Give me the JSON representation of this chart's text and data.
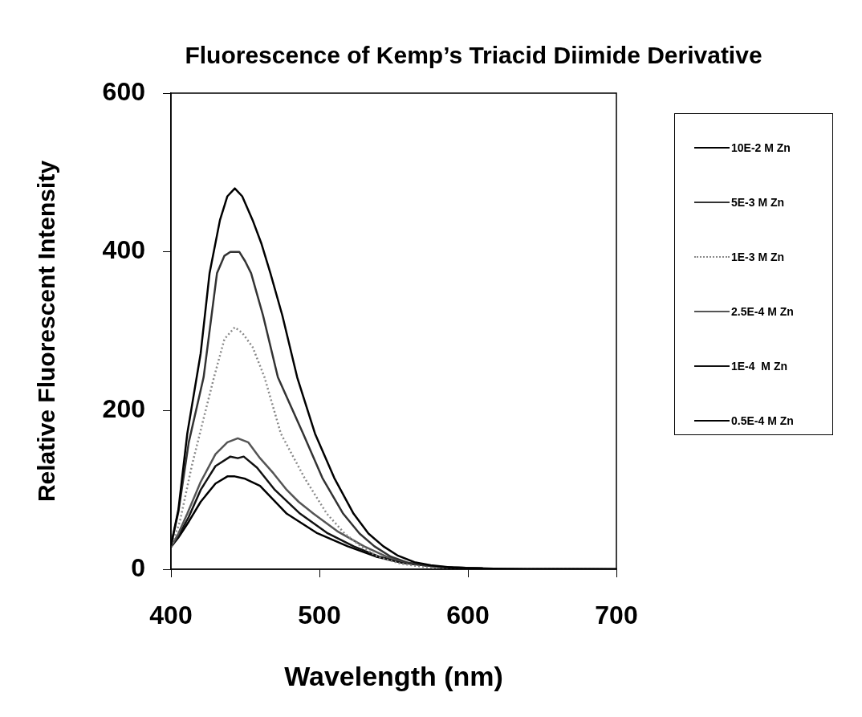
{
  "chart_data": {
    "type": "line",
    "title": "Fluorescence of Kemp’s Triacid Diimide Derivative",
    "xlabel": "Wavelength (nm)",
    "ylabel": "Relative Fluorescent Intensity",
    "xlim": [
      400,
      700
    ],
    "xticks": [
      400,
      500,
      600,
      700
    ],
    "ylim": [
      0,
      600
    ],
    "yticks": [
      0,
      200,
      400,
      600
    ],
    "grid": false,
    "legend": "right",
    "marker": "none",
    "series": [
      {
        "name": "10E-2 M Zn",
        "color": "#000000",
        "x": [
          400,
          405,
          411,
          420,
          426,
          433,
          438,
          443,
          448,
          455,
          461,
          467,
          475,
          485,
          497,
          510,
          523,
          533,
          543,
          553,
          564,
          575,
          590,
          610,
          640,
          700
        ],
        "values": [
          30,
          75,
          171,
          272,
          373,
          440,
          470,
          480,
          470,
          440,
          410,
          373,
          320,
          242,
          171,
          115,
          70,
          45,
          29,
          17,
          9,
          5,
          2,
          1,
          0,
          0
        ]
      },
      {
        "name": "5E-3 M Zn",
        "color": "#333333",
        "x": [
          400,
          405,
          412,
          422,
          431,
          436,
          440,
          446,
          450,
          454,
          462,
          472,
          489,
          502,
          516,
          527,
          537,
          548,
          560,
          575,
          590,
          610,
          640,
          700
        ],
        "values": [
          30,
          72,
          160,
          242,
          373,
          395,
          400,
          400,
          388,
          373,
          320,
          242,
          171,
          115,
          70,
          45,
          29,
          16,
          8,
          4,
          2,
          1,
          0,
          0
        ]
      },
      {
        "name": "1E-3 M Zn",
        "color": "#8a8a8a",
        "line_style": "dotted",
        "x": [
          400,
          406,
          414,
          422,
          429,
          436,
          443,
          448,
          455,
          463,
          474,
          490,
          505,
          517,
          528,
          540,
          555,
          570,
          590,
          620,
          700
        ],
        "values": [
          28,
          60,
          130,
          190,
          242,
          290,
          305,
          298,
          280,
          242,
          171,
          115,
          70,
          45,
          29,
          15,
          7,
          3,
          1,
          0,
          0
        ]
      },
      {
        "name": "2.5E-4 M Zn",
        "color": "#555555",
        "x": [
          400,
          405,
          411,
          420,
          430,
          438,
          445,
          452,
          460,
          469,
          478,
          486,
          496,
          512,
          530,
          545,
          560,
          580,
          610,
          700
        ],
        "values": [
          28,
          45,
          70,
          110,
          145,
          160,
          165,
          160,
          140,
          121,
          100,
          85,
          70,
          48,
          29,
          16,
          8,
          3,
          1,
          0
        ]
      },
      {
        "name": "1E-4  M Zn",
        "color": "#111111",
        "x": [
          400,
          405,
          412,
          420,
          430,
          440,
          445,
          449,
          458,
          470,
          487,
          505,
          523,
          540,
          558,
          580,
          610,
          700
        ],
        "values": [
          28,
          42,
          66,
          100,
          130,
          142,
          140,
          142,
          128,
          100,
          70,
          46,
          29,
          16,
          8,
          3,
          1,
          0
        ]
      },
      {
        "name": "0.5E-4 M Zn",
        "color": "#000000",
        "x": [
          400,
          405,
          412,
          420,
          430,
          438,
          443,
          450,
          460,
          478,
          498,
          519,
          538,
          556,
          580,
          610,
          700
        ],
        "values": [
          28,
          40,
          60,
          85,
          108,
          117,
          117,
          114,
          105,
          70,
          46,
          29,
          16,
          8,
          3,
          1,
          0
        ]
      }
    ]
  }
}
